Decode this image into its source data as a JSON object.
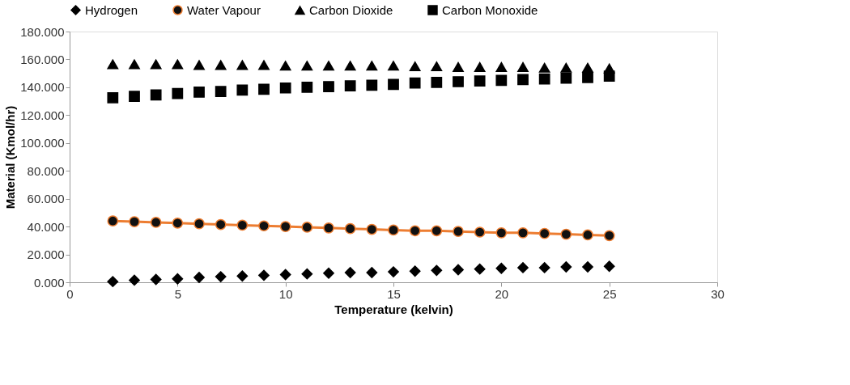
{
  "chart_data": {
    "type": "scatter",
    "xlabel": "Temperature (kelvin)",
    "ylabel": "Material (Kmol/hr)",
    "x": [
      2,
      3,
      4,
      5,
      6,
      7,
      8,
      9,
      10,
      11,
      12,
      13,
      14,
      15,
      16,
      17,
      18,
      19,
      20,
      21,
      22,
      23,
      24,
      25
    ],
    "series": [
      {
        "name": "Hydrogen",
        "color": "#000000",
        "marker": "diamond",
        "values": [
          0.5,
          1.5,
          2,
          2.5,
          3.5,
          4,
          4.5,
          5,
          5.5,
          6,
          6.5,
          7,
          7,
          7.5,
          8,
          8.5,
          9,
          9.5,
          10,
          10.5,
          10.5,
          11,
          11,
          11.5
        ]
      },
      {
        "name": "Water Vapour",
        "type": "line",
        "color": "#ed7d31",
        "marker": "circle",
        "values": [
          44,
          43.5,
          43,
          42.5,
          42,
          41.5,
          41,
          40.5,
          40,
          39.5,
          39,
          38.5,
          38,
          37.5,
          37,
          37,
          36.5,
          36,
          35.5,
          35.5,
          35,
          34.5,
          34,
          33.5
        ]
      },
      {
        "name": "Carbon Dioxide",
        "color": "#000000",
        "marker": "triangle",
        "values": [
          156.5,
          156.5,
          156.5,
          156.5,
          156,
          156,
          156,
          156,
          155.5,
          155.5,
          155.5,
          155.5,
          155.5,
          155.5,
          155,
          155,
          154.5,
          154.5,
          154.5,
          154.5,
          154,
          154,
          154,
          153.5
        ]
      },
      {
        "name": "Carbon Monoxide",
        "color": "#000000",
        "marker": "square",
        "values": [
          132.5,
          133.5,
          134.5,
          135.5,
          136.5,
          137,
          138,
          138.5,
          139.5,
          140,
          140.5,
          141,
          141.5,
          142,
          143,
          143.5,
          144,
          144.5,
          145,
          145.5,
          146,
          146.5,
          147,
          148
        ]
      }
    ],
    "xlim": [
      0,
      30
    ],
    "xticks": [
      0,
      5,
      10,
      15,
      20,
      25,
      30
    ],
    "ylim": [
      0,
      180
    ],
    "yticks": [
      {
        "value": 0,
        "label": "0.000"
      },
      {
        "value": 20,
        "label": "20.000"
      },
      {
        "value": 40,
        "label": "40.000"
      },
      {
        "value": 60,
        "label": "60.000"
      },
      {
        "value": 80,
        "label": "80.000"
      },
      {
        "value": 100,
        "label": "100.000"
      },
      {
        "value": 120,
        "label": "120.000"
      },
      {
        "value": 140,
        "label": "140.000"
      },
      {
        "value": 160,
        "label": "160.000"
      },
      {
        "value": 180,
        "label": "180.000"
      }
    ],
    "grid": false,
    "legend": "top"
  }
}
